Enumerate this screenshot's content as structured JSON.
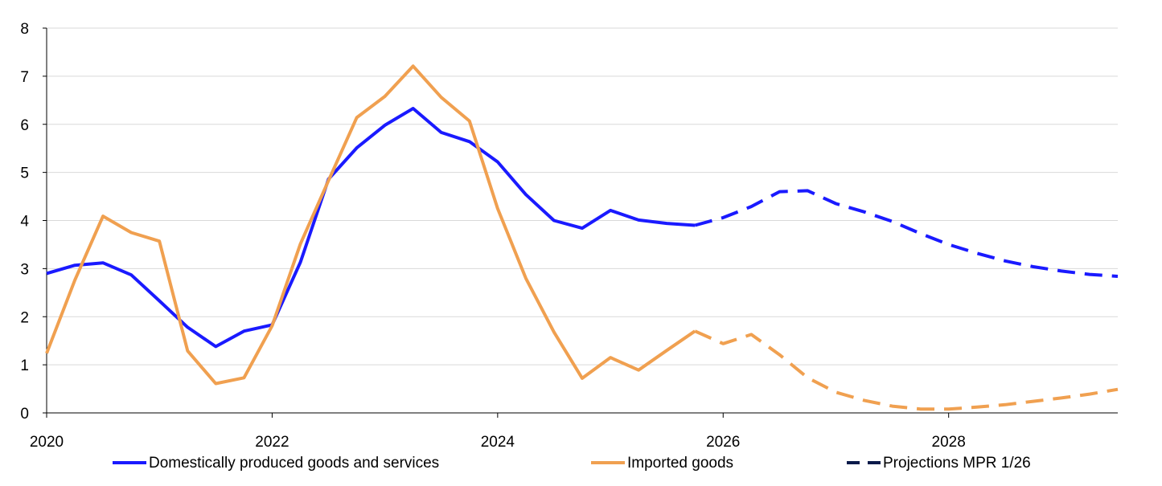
{
  "chart_data": {
    "type": "line",
    "title": "",
    "xlabel": "",
    "ylabel": "",
    "xlim": [
      2020,
      2029.5
    ],
    "ylim": [
      0,
      8
    ],
    "x_ticks": [
      2020,
      2022,
      2024,
      2026,
      2028
    ],
    "x_tick_labels": [
      "2020",
      "2022",
      "2024",
      "2026",
      "2028"
    ],
    "y_ticks": [
      0,
      1,
      2,
      3,
      4,
      5,
      6,
      7,
      8
    ],
    "y_tick_labels": [
      "0",
      "1",
      "2",
      "3",
      "4",
      "5",
      "6",
      "7",
      "8"
    ],
    "grid": "horizontal",
    "legend_position": "bottom",
    "series": [
      {
        "name": "Domestically produced goods and services",
        "color": "#1a1aff",
        "line_style": "solid",
        "x": [
          2020,
          2020.25,
          2020.5,
          2020.75,
          2021,
          2021.25,
          2021.5,
          2021.75,
          2022,
          2022.25,
          2022.5,
          2022.75,
          2023,
          2023.25,
          2023.5,
          2023.75,
          2024,
          2024.25,
          2024.5,
          2024.75,
          2025,
          2025.25,
          2025.5,
          2025.75
        ],
        "values": [
          2.9,
          3.07,
          3.12,
          2.87,
          2.33,
          1.78,
          1.38,
          1.7,
          1.83,
          3.13,
          4.86,
          5.51,
          5.98,
          6.33,
          5.83,
          5.64,
          5.22,
          4.54,
          4.0,
          3.84,
          4.21,
          4.01,
          3.94,
          3.9
        ]
      },
      {
        "name": "Imported goods",
        "color": "#f0a050",
        "line_style": "solid",
        "x": [
          2020,
          2020.25,
          2020.5,
          2020.75,
          2021,
          2021.25,
          2021.5,
          2021.75,
          2022,
          2022.25,
          2022.5,
          2022.75,
          2023,
          2023.25,
          2023.5,
          2023.75,
          2024,
          2024.25,
          2024.5,
          2024.75,
          2025,
          2025.25,
          2025.5,
          2025.75
        ],
        "values": [
          1.24,
          2.76,
          4.09,
          3.75,
          3.57,
          1.29,
          0.61,
          0.73,
          1.81,
          3.51,
          4.83,
          6.14,
          6.58,
          7.21,
          6.56,
          6.07,
          4.25,
          2.8,
          1.68,
          0.72,
          1.15,
          0.89,
          1.3,
          1.7
        ]
      },
      {
        "name": "Domestically produced goods and services projection",
        "color": "#1a1aff",
        "line_style": "dashed",
        "x": [
          2025.75,
          2026,
          2026.25,
          2026.5,
          2026.75,
          2027,
          2027.25,
          2027.5,
          2027.75,
          2028,
          2028.25,
          2028.5,
          2028.75,
          2029,
          2029.25,
          2029.5
        ],
        "values": [
          3.9,
          4.06,
          4.29,
          4.6,
          4.62,
          4.35,
          4.18,
          3.98,
          3.73,
          3.5,
          3.32,
          3.16,
          3.04,
          2.95,
          2.88,
          2.84
        ]
      },
      {
        "name": "Imported goods projection",
        "color": "#f0a050",
        "line_style": "dashed",
        "x": [
          2025.75,
          2026,
          2026.25,
          2026.5,
          2026.75,
          2027,
          2027.25,
          2027.5,
          2027.75,
          2028,
          2028.25,
          2028.5,
          2028.75,
          2029,
          2029.25,
          2029.5
        ],
        "values": [
          1.7,
          1.44,
          1.63,
          1.21,
          0.73,
          0.43,
          0.26,
          0.14,
          0.08,
          0.08,
          0.12,
          0.17,
          0.24,
          0.31,
          0.39,
          0.49
        ]
      }
    ],
    "legend": [
      {
        "label": "Domestically produced goods and services",
        "color": "#1a1aff",
        "style": "solid"
      },
      {
        "label": "Imported goods",
        "color": "#f0a050",
        "style": "solid"
      },
      {
        "label": "Projections MPR 1/26",
        "color": "#0a1a4a",
        "style": "dashed"
      }
    ]
  }
}
